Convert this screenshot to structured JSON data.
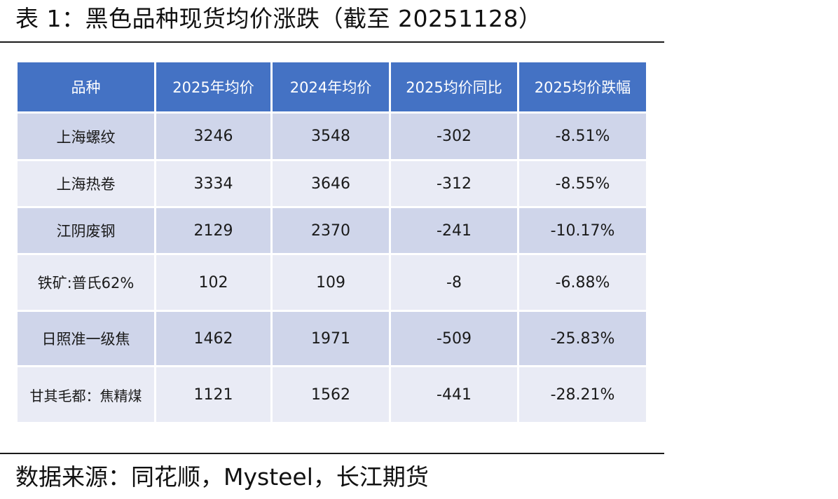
{
  "title": "表 1：黑色品种现货均价涨跌（截至 20251128）",
  "table": {
    "headers": [
      "品种",
      "2025年均价",
      "2024年均价",
      "2025均价同比",
      "2025均价跌幅"
    ],
    "rows": [
      {
        "name": "上海螺纹",
        "v2025": "3246",
        "v2024": "3548",
        "yoy": "-302",
        "pct": "-8.51%"
      },
      {
        "name": "上海热卷",
        "v2025": "3334",
        "v2024": "3646",
        "yoy": "-312",
        "pct": "-8.55%"
      },
      {
        "name": "江阴废钢",
        "v2025": "2129",
        "v2024": "2370",
        "yoy": "-241",
        "pct": "-10.17%"
      },
      {
        "name": "铁矿:普氏62%",
        "v2025": "102",
        "v2024": "109",
        "yoy": "-8",
        "pct": "-6.88%"
      },
      {
        "name": "日照准一级焦",
        "v2025": "1462",
        "v2024": "1971",
        "yoy": "-509",
        "pct": "-25.83%"
      },
      {
        "name": "甘其毛都：焦精煤",
        "v2025": "1121",
        "v2024": "1562",
        "yoy": "-441",
        "pct": "-28.21%"
      }
    ]
  },
  "source": "数据来源：同花顺，Mysteel，长江期货",
  "colors": {
    "header_bg": "#4472c4",
    "row_dark": "#cfd5ea",
    "row_light": "#e9ebf5"
  }
}
